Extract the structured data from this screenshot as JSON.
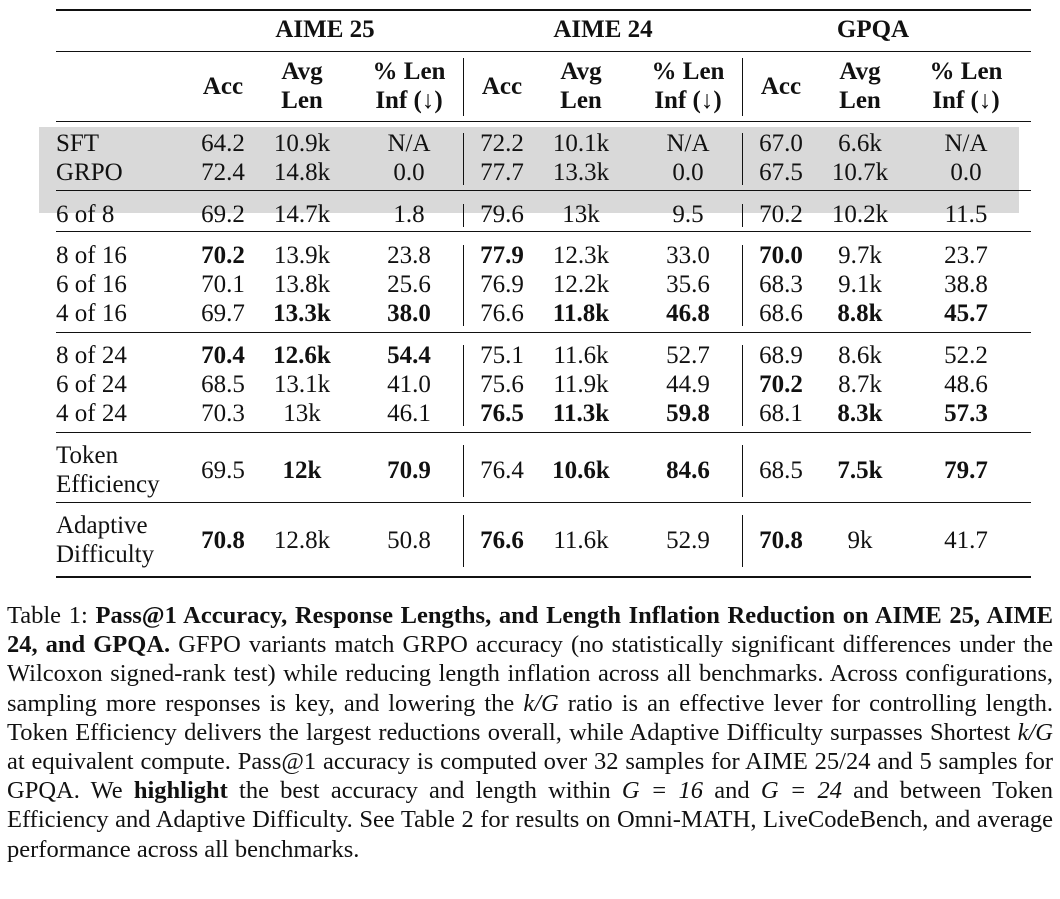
{
  "table": {
    "groups": [
      "AIME 25",
      "AIME 24",
      "GPQA"
    ],
    "subheaders": [
      {
        "line1": "Acc",
        "line2": ""
      },
      {
        "line1": "Avg",
        "line2": "Len"
      },
      {
        "line1": "% Len",
        "line2": "Inf (↓)"
      }
    ],
    "row_groups": [
      {
        "shaded": true,
        "rows": [
          {
            "label": [
              "SFT"
            ],
            "cells": [
              [
                "64.2",
                0
              ],
              [
                "10.9k",
                0
              ],
              [
                "N/A",
                0
              ],
              [
                "72.2",
                0
              ],
              [
                "10.1k",
                0
              ],
              [
                "N/A",
                0
              ],
              [
                "67.0",
                0
              ],
              [
                "6.6k",
                0
              ],
              [
                "N/A",
                0
              ]
            ]
          },
          {
            "label": [
              "GRPO"
            ],
            "cells": [
              [
                "72.4",
                0
              ],
              [
                "14.8k",
                0
              ],
              [
                "0.0",
                0
              ],
              [
                "77.7",
                0
              ],
              [
                "13.3k",
                0
              ],
              [
                "0.0",
                0
              ],
              [
                "67.5",
                0
              ],
              [
                "10.7k",
                0
              ],
              [
                "0.0",
                0
              ]
            ]
          }
        ]
      },
      {
        "shaded": false,
        "rows": [
          {
            "label": [
              "6 of 8"
            ],
            "cells": [
              [
                "69.2",
                0
              ],
              [
                "14.7k",
                0
              ],
              [
                "1.8",
                0
              ],
              [
                "79.6",
                0
              ],
              [
                "13k",
                0
              ],
              [
                "9.5",
                0
              ],
              [
                "70.2",
                0
              ],
              [
                "10.2k",
                0
              ],
              [
                "11.5",
                0
              ]
            ]
          }
        ]
      },
      {
        "shaded": false,
        "rows": [
          {
            "label": [
              "8 of 16"
            ],
            "cells": [
              [
                "70.2",
                1
              ],
              [
                "13.9k",
                0
              ],
              [
                "23.8",
                0
              ],
              [
                "77.9",
                1
              ],
              [
                "12.3k",
                0
              ],
              [
                "33.0",
                0
              ],
              [
                "70.0",
                1
              ],
              [
                "9.7k",
                0
              ],
              [
                "23.7",
                0
              ]
            ]
          },
          {
            "label": [
              "6 of 16"
            ],
            "cells": [
              [
                "70.1",
                0
              ],
              [
                "13.8k",
                0
              ],
              [
                "25.6",
                0
              ],
              [
                "76.9",
                0
              ],
              [
                "12.2k",
                0
              ],
              [
                "35.6",
                0
              ],
              [
                "68.3",
                0
              ],
              [
                "9.1k",
                0
              ],
              [
                "38.8",
                0
              ]
            ]
          },
          {
            "label": [
              "4 of 16"
            ],
            "cells": [
              [
                "69.7",
                0
              ],
              [
                "13.3k",
                1
              ],
              [
                "38.0",
                1
              ],
              [
                "76.6",
                0
              ],
              [
                "11.8k",
                1
              ],
              [
                "46.8",
                1
              ],
              [
                "68.6",
                0
              ],
              [
                "8.8k",
                1
              ],
              [
                "45.7",
                1
              ]
            ]
          }
        ]
      },
      {
        "shaded": false,
        "rows": [
          {
            "label": [
              "8 of 24"
            ],
            "cells": [
              [
                "70.4",
                1
              ],
              [
                "12.6k",
                1
              ],
              [
                "54.4",
                1
              ],
              [
                "75.1",
                0
              ],
              [
                "11.6k",
                0
              ],
              [
                "52.7",
                0
              ],
              [
                "68.9",
                0
              ],
              [
                "8.6k",
                0
              ],
              [
                "52.2",
                0
              ]
            ]
          },
          {
            "label": [
              "6 of 24"
            ],
            "cells": [
              [
                "68.5",
                0
              ],
              [
                "13.1k",
                0
              ],
              [
                "41.0",
                0
              ],
              [
                "75.6",
                0
              ],
              [
                "11.9k",
                0
              ],
              [
                "44.9",
                0
              ],
              [
                "70.2",
                1
              ],
              [
                "8.7k",
                0
              ],
              [
                "48.6",
                0
              ]
            ]
          },
          {
            "label": [
              "4 of 24"
            ],
            "cells": [
              [
                "70.3",
                0
              ],
              [
                "13k",
                0
              ],
              [
                "46.1",
                0
              ],
              [
                "76.5",
                1
              ],
              [
                "11.3k",
                1
              ],
              [
                "59.8",
                1
              ],
              [
                "68.1",
                0
              ],
              [
                "8.3k",
                1
              ],
              [
                "57.3",
                1
              ]
            ]
          }
        ]
      },
      {
        "shaded": false,
        "rows": [
          {
            "label": [
              "Token",
              "Efficiency"
            ],
            "cells": [
              [
                "69.5",
                0
              ],
              [
                "12k",
                1
              ],
              [
                "70.9",
                1
              ],
              [
                "76.4",
                0
              ],
              [
                "10.6k",
                1
              ],
              [
                "84.6",
                1
              ],
              [
                "68.5",
                0
              ],
              [
                "7.5k",
                1
              ],
              [
                "79.7",
                1
              ]
            ]
          }
        ]
      },
      {
        "shaded": false,
        "rows": [
          {
            "label": [
              "Adaptive",
              "Difficulty"
            ],
            "cells": [
              [
                "70.8",
                1
              ],
              [
                "12.8k",
                0
              ],
              [
                "50.8",
                0
              ],
              [
                "76.6",
                1
              ],
              [
                "11.6k",
                0
              ],
              [
                "52.9",
                0
              ],
              [
                "70.8",
                1
              ],
              [
                "9k",
                0
              ],
              [
                "41.7",
                0
              ]
            ]
          }
        ]
      }
    ]
  },
  "caption": {
    "label": "Table 1:",
    "bold_title": "Pass@1 Accuracy, Response Lengths, and Length Inflation Reduction on AIME 25, AIME 24, and GPQA.",
    "s1": "GFPO variants match GRPO accuracy (no statistically significant differences under the Wilcoxon signed-rank test) while reducing length inflation across all benchmarks. Across configurations, sampling more responses is key, and lowering the",
    "s1_math": "k/G",
    "s2": "ratio is an effective lever for controlling length. Token Efficiency delivers the largest reductions overall, while Adaptive Difficulty surpasses Shortest",
    "s2_math": "k/G",
    "s3": "at equivalent compute. Pass@1 accuracy is computed over 32 samples for AIME 25/24 and 5 samples for GPQA. We",
    "highlight_word": "highlight",
    "s4": "the best accuracy and length within",
    "m1": "G = 16",
    "and_word": "and",
    "m2": "G = 24",
    "s5": "and between Token Efficiency and Adaptive Difficulty. See Table 2 for results on Omni-MATH, LiveCodeBench, and average performance across all benchmarks."
  }
}
